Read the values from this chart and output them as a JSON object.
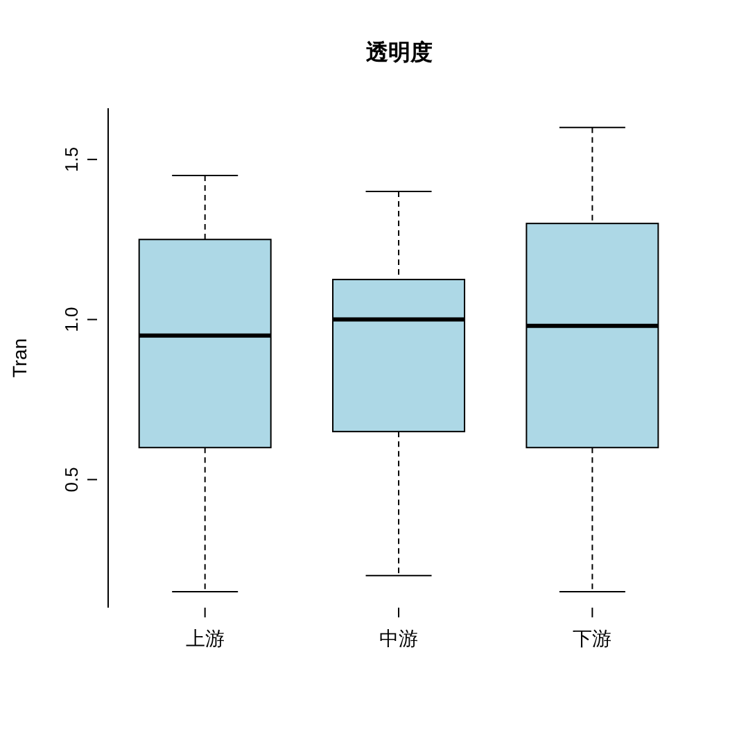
{
  "chart_data": {
    "type": "box",
    "title": "透明度",
    "ylabel": "Tran",
    "categories": [
      "上游",
      "中游",
      "下游"
    ],
    "color": "#add8e6",
    "ylim": [
      0.1,
      1.66
    ],
    "yticks": [
      {
        "value": 0.5,
        "label": "0.5"
      },
      {
        "value": 1.0,
        "label": "1.0"
      },
      {
        "value": 1.5,
        "label": "1.5"
      }
    ],
    "grid": false,
    "legend": false,
    "boxes": [
      {
        "low": 0.15,
        "q1": 0.6,
        "median": 0.95,
        "q3": 1.25,
        "high": 1.45
      },
      {
        "low": 0.2,
        "q1": 0.65,
        "median": 1.0,
        "q3": 1.125,
        "high": 1.4
      },
      {
        "low": 0.15,
        "q1": 0.6,
        "median": 0.98,
        "q3": 1.3,
        "high": 1.6
      }
    ]
  }
}
